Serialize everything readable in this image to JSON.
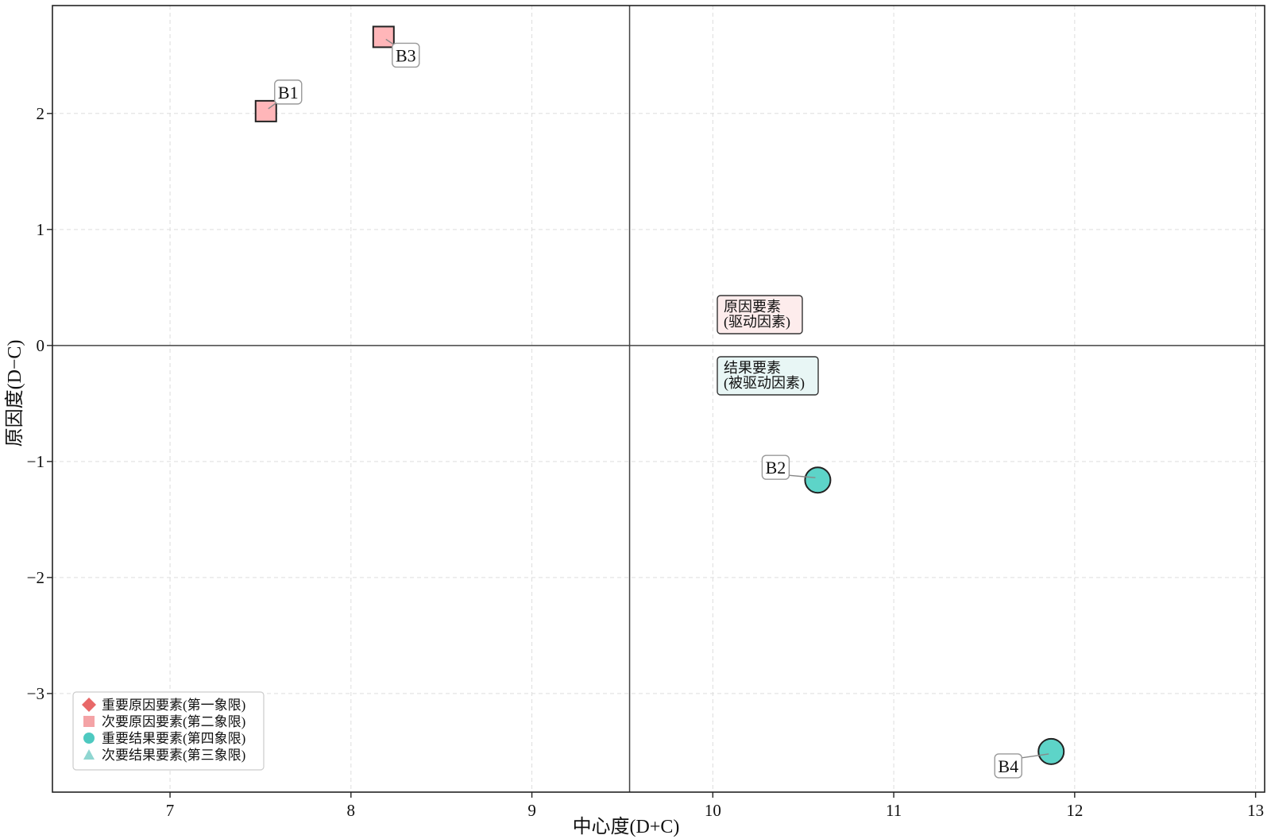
{
  "chart_data": {
    "type": "scatter",
    "title": "",
    "xlabel": "中心度(D+C)",
    "ylabel": "原因度(D−C)",
    "xlim": [
      6.35,
      13.05
    ],
    "ylim": [
      -3.85,
      2.93
    ],
    "xticks": [
      7,
      8,
      9,
      10,
      11,
      12,
      13
    ],
    "yticks": [
      -3,
      -2,
      -1,
      0,
      1,
      2
    ],
    "xtick_labels": [
      "7",
      "8",
      "9",
      "10",
      "11",
      "12",
      "13"
    ],
    "ytick_labels": [
      "−3",
      "−2",
      "−1",
      "0",
      "1",
      "2"
    ],
    "grid": true,
    "divider_x": 9.54,
    "divider_y": 0,
    "points": [
      {
        "label": "B1",
        "x": 7.53,
        "y": 2.02,
        "marker": "square",
        "color": "#ffb6b9",
        "category": "次要原因要素"
      },
      {
        "label": "B3",
        "x": 8.18,
        "y": 2.66,
        "marker": "square",
        "color": "#ffb6b9",
        "category": "次要原因要素"
      },
      {
        "label": "B2",
        "x": 10.58,
        "y": -1.16,
        "marker": "circle",
        "color": "#5dd4c8",
        "category": "重要结果要素"
      },
      {
        "label": "B4",
        "x": 11.87,
        "y": -3.5,
        "marker": "circle",
        "color": "#5dd4c8",
        "category": "重要结果要素"
      }
    ],
    "annotations": [
      {
        "name": "cause",
        "lines": [
          "原因要素",
          "(驱动因素)"
        ],
        "fill": "#fdecec"
      },
      {
        "name": "effect",
        "lines": [
          "结果要素",
          "(被驱动因素)"
        ],
        "fill": "#e8f6f5"
      }
    ],
    "legend": {
      "position": "bottom-left",
      "entries": [
        {
          "label": "重要原因要素(第一象限)",
          "marker": "diamond",
          "color": "#e86868"
        },
        {
          "label": "次要原因要素(第二象限)",
          "marker": "square",
          "color": "#f4a3a6"
        },
        {
          "label": "重要结果要素(第四象限)",
          "marker": "circle",
          "color": "#4ec9c0"
        },
        {
          "label": "次要结果要素(第三象限)",
          "marker": "triangle",
          "color": "#8fd6d1"
        }
      ]
    }
  }
}
